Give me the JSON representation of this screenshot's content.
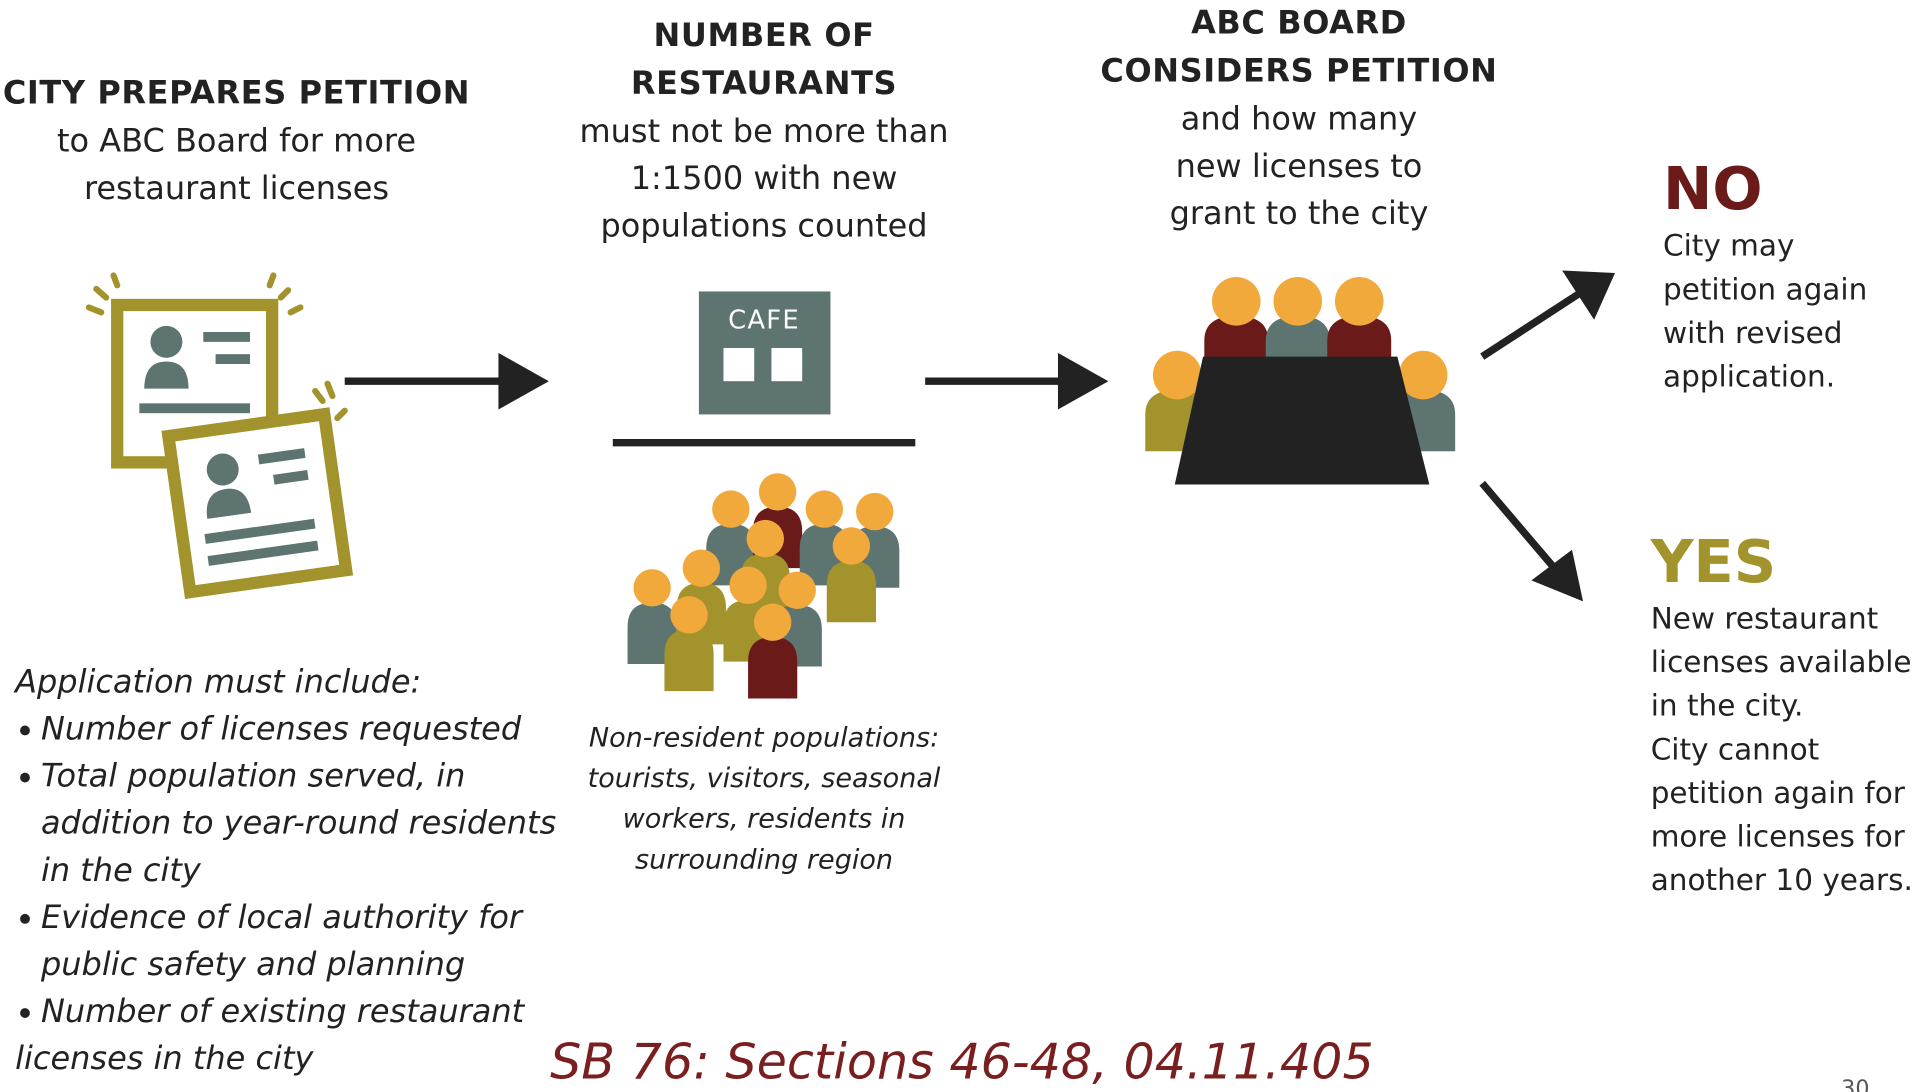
{
  "steps": [
    {
      "title": [
        "CITY PREPARES PETITION"
      ],
      "text": [
        "to ABC Board for more",
        "restaurant licenses"
      ]
    },
    {
      "title": [
        "NUMBER OF",
        "RESTAURANTS"
      ],
      "text": [
        "must not be more than",
        "1:1500 with new",
        "populations counted"
      ],
      "sign": "CAFE"
    },
    {
      "title": [
        "ABC BOARD",
        "CONSIDERS PETITION"
      ],
      "text": [
        "and how many",
        "new licenses to",
        "grant to the city"
      ]
    }
  ],
  "outcomes": [
    {
      "label": "NO",
      "text": [
        "City may",
        "petition again",
        "with revised",
        "application."
      ]
    },
    {
      "label": "YES",
      "text": [
        "New restaurant",
        "licenses available",
        "in the city.",
        "City cannot",
        "petition again for",
        "more licenses for",
        "another 10 years."
      ]
    }
  ],
  "application": {
    "heading": "Application must include:",
    "items": [
      [
        "Number of licenses requested"
      ],
      [
        "Total population served, in",
        "addition to year-round residents",
        "in the city"
      ],
      [
        "Evidence of local authority  for",
        "public safety and planning"
      ],
      [
        "Number of existing restaurant",
        "licenses in the city"
      ]
    ]
  },
  "note": [
    "Non-resident populations:",
    "tourists, visitors, seasonal",
    "workers, residents in",
    "surrounding region"
  ],
  "citation": "SB 76: Sections 46-48, 04.11.405",
  "page_number": "30"
}
